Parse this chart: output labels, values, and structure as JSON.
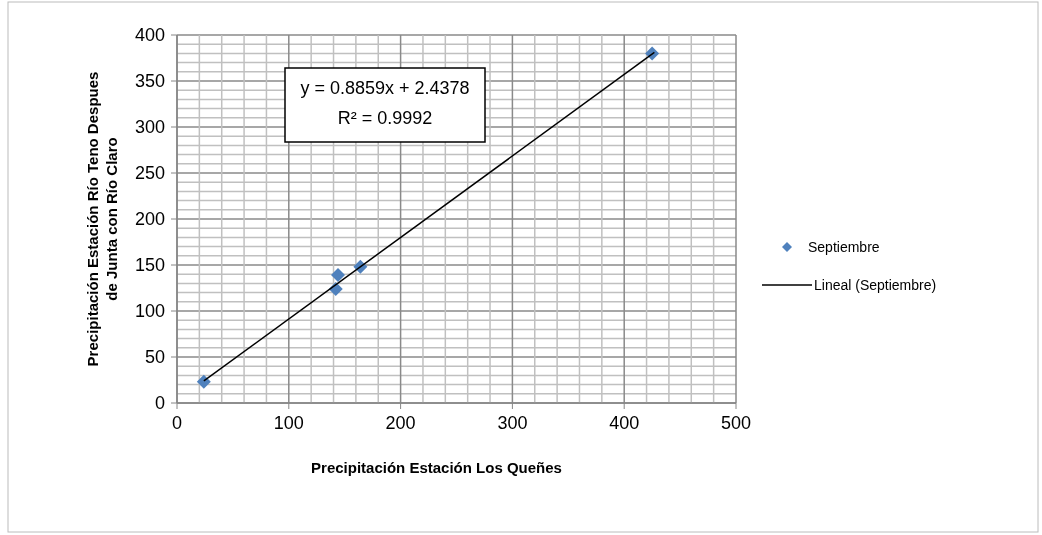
{
  "chart_data": {
    "type": "scatter",
    "xlabel": "Precipitación Estación Los Queñes",
    "ylabel": "Precipitación Estación Río Teno Despues de Junta con Río Claro",
    "xlim": [
      0,
      500
    ],
    "ylim": [
      0,
      400
    ],
    "xticks": [
      0,
      {
        "value": 20,
        "label": null
      },
      {
        "value": 40,
        "label": null
      },
      {
        "value": 60,
        "label": null
      },
      {
        "value": 80,
        "label": null
      },
      100,
      {
        "value": 120,
        "label": null
      },
      {
        "value": 140,
        "label": null
      },
      {
        "value": 160,
        "label": null
      },
      {
        "value": 180,
        "label": null
      },
      200,
      {
        "value": 220,
        "label": null
      },
      {
        "value": 240,
        "label": null
      },
      {
        "value": 260,
        "label": null
      },
      {
        "value": 280,
        "label": null
      },
      300,
      {
        "value": 320,
        "label": null
      },
      {
        "value": 340,
        "label": null
      },
      {
        "value": 360,
        "label": null
      },
      {
        "value": 380,
        "label": null
      },
      400,
      {
        "value": 420,
        "label": null
      },
      {
        "value": 440,
        "label": null
      },
      {
        "value": 460,
        "label": null
      },
      {
        "value": 480,
        "label": null
      },
      500
    ],
    "yticks": [
      0,
      {
        "value": 10,
        "label": null
      },
      {
        "value": 20,
        "label": null
      },
      {
        "value": 30,
        "label": null
      },
      {
        "value": 40,
        "label": null
      },
      50,
      {
        "value": 60,
        "label": null
      },
      {
        "value": 70,
        "label": null
      },
      {
        "value": 80,
        "label": null
      },
      {
        "value": 90,
        "label": null
      },
      100,
      {
        "value": 110,
        "label": null
      },
      {
        "value": 120,
        "label": null
      },
      {
        "value": 130,
        "label": null
      },
      {
        "value": 140,
        "label": null
      },
      150,
      {
        "value": 160,
        "label": null
      },
      {
        "value": 170,
        "label": null
      },
      {
        "value": 180,
        "label": null
      },
      {
        "value": 190,
        "label": null
      },
      200,
      {
        "value": 210,
        "label": null
      },
      {
        "value": 220,
        "label": null
      },
      {
        "value": 230,
        "label": null
      },
      {
        "value": 240,
        "label": null
      },
      250,
      {
        "value": 260,
        "label": null
      },
      {
        "value": 270,
        "label": null
      },
      {
        "value": 280,
        "label": null
      },
      {
        "value": 290,
        "label": null
      },
      300,
      {
        "value": 310,
        "label": null
      },
      {
        "value": 320,
        "label": null
      },
      {
        "value": 330,
        "label": null
      },
      {
        "value": 340,
        "label": null
      },
      350,
      {
        "value": 360,
        "label": null
      },
      {
        "value": 370,
        "label": null
      },
      {
        "value": 380,
        "label": null
      },
      {
        "value": 390,
        "label": null
      },
      400
    ],
    "grid": true,
    "legend": "right",
    "annotations": [
      "y = 0.8859x + 2.4378",
      "R² = 0.9992"
    ],
    "series": [
      {
        "name": "Septiembre",
        "marker": "diamond",
        "color": "#4f81bd",
        "x": [
          24,
          142,
          144,
          164,
          425
        ],
        "values": [
          23,
          124,
          139,
          148,
          380
        ]
      },
      {
        "name": "Lineal (Septiembre)",
        "type": "line",
        "color": "#000000",
        "x": [
          24,
          427
        ],
        "values": [
          24,
          381
        ]
      }
    ]
  }
}
